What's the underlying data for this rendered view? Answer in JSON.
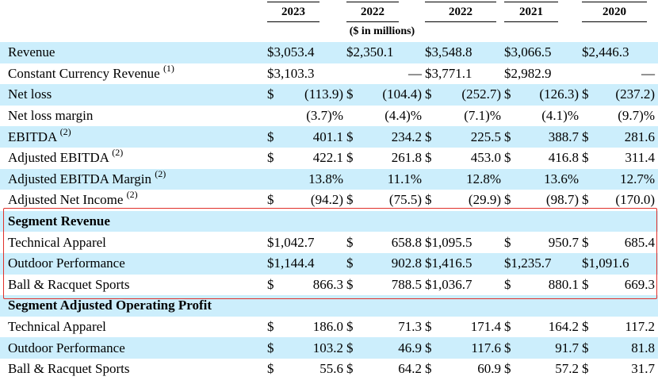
{
  "header": {
    "years": [
      "2023",
      "2022",
      "2022",
      "2021",
      "2020"
    ],
    "units": "($ in millions)"
  },
  "rows": [
    {
      "label": "Revenue",
      "note": "",
      "cells": [
        [
          "$3,053.4",
          ""
        ],
        [
          "$2,350.1",
          ""
        ],
        [
          "$3,548.8",
          ""
        ],
        [
          "$3,066.5",
          ""
        ],
        [
          "$2,446.3",
          ""
        ]
      ]
    },
    {
      "label": "Constant Currency Revenue ",
      "note": "(1)",
      "cells": [
        [
          "$3,103.3",
          ""
        ],
        [
          "",
          "—"
        ],
        [
          "$3,771.1",
          ""
        ],
        [
          "$2,982.9",
          ""
        ],
        [
          "",
          "—"
        ]
      ]
    },
    {
      "label": "Net loss",
      "note": "",
      "cells": [
        [
          "$",
          "(113.9)"
        ],
        [
          "$",
          "(104.4)"
        ],
        [
          "$",
          "(252.7)"
        ],
        [
          "$",
          "(126.3)"
        ],
        [
          "$",
          "(237.2)"
        ]
      ]
    },
    {
      "label": "Net loss margin",
      "note": "",
      "cells": [
        [
          "",
          "(3.7)%"
        ],
        [
          "",
          "(4.4)%"
        ],
        [
          "",
          "(7.1)%"
        ],
        [
          "",
          "(4.1)%"
        ],
        [
          "",
          "(9.7)%"
        ]
      ]
    },
    {
      "label": "EBITDA ",
      "note": "(2)",
      "cells": [
        [
          "$",
          "401.1"
        ],
        [
          "$",
          "234.2"
        ],
        [
          "$",
          "225.5"
        ],
        [
          "$",
          "388.7"
        ],
        [
          "$",
          "281.6"
        ]
      ]
    },
    {
      "label": "Adjusted EBITDA ",
      "note": "(2)",
      "cells": [
        [
          "$",
          "422.1"
        ],
        [
          "$",
          "261.8"
        ],
        [
          "$",
          "453.0"
        ],
        [
          "$",
          "416.8"
        ],
        [
          "$",
          "311.4"
        ]
      ]
    },
    {
      "label": "Adjusted EBITDA Margin ",
      "note": "(2)",
      "cells": [
        [
          "",
          "13.8%"
        ],
        [
          "",
          "11.1%"
        ],
        [
          "",
          "12.8%"
        ],
        [
          "",
          "13.6%"
        ],
        [
          "",
          "12.7%"
        ]
      ]
    },
    {
      "label": "Adjusted Net Income ",
      "note": "(2)",
      "cells": [
        [
          "$",
          "(94.2)"
        ],
        [
          "$",
          "(75.5)"
        ],
        [
          "$",
          "(29.9)"
        ],
        [
          "$",
          "(98.7)"
        ],
        [
          "$",
          "(170.0)"
        ]
      ]
    },
    {
      "label": "Segment Revenue",
      "note": "",
      "section": true,
      "cells": []
    },
    {
      "label": "Technical Apparel",
      "note": "",
      "cells": [
        [
          "$1,042.7",
          ""
        ],
        [
          "$",
          "658.8"
        ],
        [
          "$1,095.5",
          ""
        ],
        [
          "$",
          "950.7"
        ],
        [
          "$",
          "685.4"
        ]
      ]
    },
    {
      "label": "Outdoor Performance",
      "note": "",
      "cells": [
        [
          "$1,144.4",
          ""
        ],
        [
          "$",
          "902.8"
        ],
        [
          "$1,416.5",
          ""
        ],
        [
          "$1,235.7",
          ""
        ],
        [
          "$1,091.6",
          ""
        ]
      ]
    },
    {
      "label": "Ball & Racquet Sports",
      "note": "",
      "cells": [
        [
          "$",
          "866.3"
        ],
        [
          "$",
          "788.5"
        ],
        [
          "$1,036.7",
          ""
        ],
        [
          "$",
          "880.1"
        ],
        [
          "$",
          "669.3"
        ]
      ]
    },
    {
      "label": "Segment Adjusted Operating Profit",
      "note": "",
      "section": true,
      "cells": []
    },
    {
      "label": "Technical Apparel",
      "note": "",
      "cells": [
        [
          "$",
          "186.0"
        ],
        [
          "$",
          "71.3"
        ],
        [
          "$",
          "171.4"
        ],
        [
          "$",
          "164.2"
        ],
        [
          "$",
          "117.2"
        ]
      ]
    },
    {
      "label": "Outdoor Performance",
      "note": "",
      "cells": [
        [
          "$",
          "103.2"
        ],
        [
          "$",
          "46.9"
        ],
        [
          "$",
          "117.6"
        ],
        [
          "$",
          "91.7"
        ],
        [
          "$",
          "81.8"
        ]
      ]
    },
    {
      "label": "Ball & Racquet Sports",
      "note": "",
      "cells": [
        [
          "$",
          "55.6"
        ],
        [
          "$",
          "64.2"
        ],
        [
          "$",
          "60.9"
        ],
        [
          "$",
          "57.2"
        ],
        [
          "$",
          "31.7"
        ]
      ]
    }
  ],
  "colors": {
    "shade": "#cceefc",
    "highlight": "#e0312b"
  }
}
